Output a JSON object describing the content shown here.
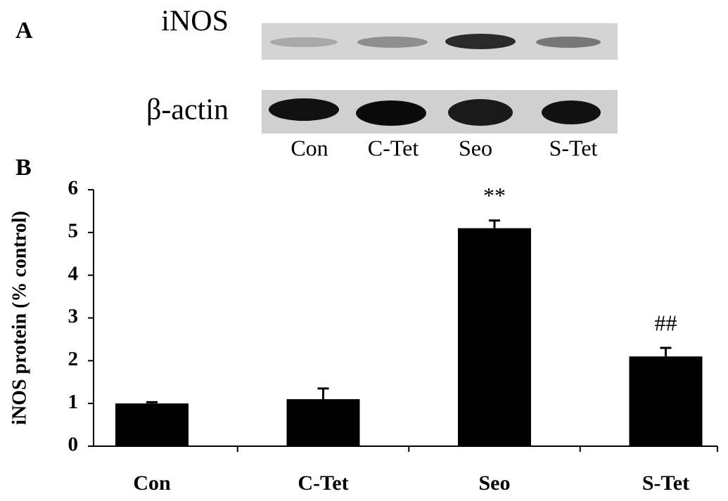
{
  "panel_a": {
    "label": "A",
    "rows": [
      "iNOS",
      "β-actin"
    ],
    "lanes": [
      "Con",
      "C-Tet",
      "Seo",
      "S-Tet"
    ]
  },
  "chart_data": {
    "type": "bar",
    "panel_label": "B",
    "y_label": "iNOS protein (% control)",
    "categories": [
      "Con",
      "C-Tet",
      "Seo",
      "S-Tet"
    ],
    "values": [
      1.0,
      1.1,
      5.1,
      2.1
    ],
    "errors": [
      0.03,
      0.25,
      0.18,
      0.2
    ],
    "annotations": [
      null,
      null,
      "**",
      "##"
    ],
    "color": "#000000",
    "ylim": [
      0,
      6
    ],
    "yticks": [
      0,
      1,
      2,
      3,
      4,
      5,
      6
    ],
    "grid": false
  }
}
